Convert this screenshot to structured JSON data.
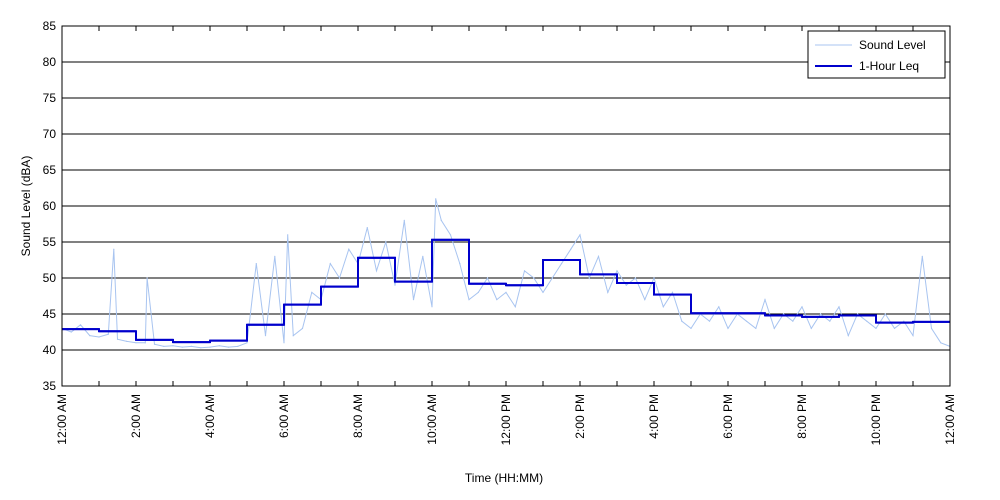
{
  "chart_data": {
    "type": "line",
    "xlabel": "Time (HH:MM)",
    "ylabel": "Sound Level (dBA)",
    "ylim": [
      35,
      85
    ],
    "xlim_hours": [
      0,
      24
    ],
    "yticks": [
      35,
      40,
      45,
      50,
      55,
      60,
      65,
      70,
      75,
      80,
      85
    ],
    "xtick_labels": [
      "12:00 AM",
      "2:00 AM",
      "4:00 AM",
      "6:00 AM",
      "8:00 AM",
      "10:00 AM",
      "12:00 PM",
      "2:00 PM",
      "4:00 PM",
      "6:00 PM",
      "8:00 PM",
      "10:00 PM",
      "12:00 AM"
    ],
    "grid": "horizontal",
    "legend_position": "top-right",
    "series": [
      {
        "name": "Sound Level",
        "color": "#a8c4f0",
        "x_hours": [
          0,
          0.25,
          0.5,
          0.75,
          1,
          1.25,
          1.4,
          1.5,
          1.75,
          2,
          2.25,
          2.3,
          2.5,
          2.75,
          3,
          3.25,
          3.5,
          3.75,
          4,
          4.25,
          4.5,
          4.75,
          5,
          5.25,
          5.5,
          5.75,
          6,
          6.1,
          6.25,
          6.5,
          6.75,
          7,
          7.25,
          7.5,
          7.75,
          8,
          8.25,
          8.5,
          8.75,
          9,
          9.25,
          9.5,
          9.75,
          10,
          10.1,
          10.25,
          10.5,
          10.75,
          11,
          11.25,
          11.5,
          11.75,
          12,
          12.25,
          12.5,
          12.75,
          13,
          13.25,
          13.5,
          13.75,
          14,
          14.25,
          14.5,
          14.75,
          15,
          15.25,
          15.5,
          15.75,
          16,
          16.25,
          16.5,
          16.75,
          17,
          17.25,
          17.5,
          17.75,
          18,
          18.25,
          18.5,
          18.75,
          19,
          19.25,
          19.5,
          19.75,
          20,
          20.25,
          20.5,
          20.75,
          21,
          21.25,
          21.5,
          21.75,
          22,
          22.25,
          22.5,
          22.75,
          23,
          23.25,
          23.5,
          23.75,
          24
        ],
        "values": [
          43,
          42.5,
          43.5,
          42,
          41.8,
          42.2,
          54,
          41.5,
          41.2,
          41,
          41,
          50,
          40.8,
          40.5,
          40.6,
          40.4,
          40.5,
          40.3,
          40.4,
          40.6,
          40.4,
          40.5,
          41,
          52,
          42,
          53,
          41,
          56,
          42,
          43,
          48,
          47,
          52,
          50,
          54,
          52,
          57,
          51,
          55,
          49,
          58,
          47,
          53,
          46,
          61,
          58,
          56,
          52,
          47,
          48,
          50,
          47,
          48,
          46,
          51,
          50,
          48,
          50,
          52,
          54,
          56,
          50,
          53,
          48,
          51,
          49,
          50,
          47,
          50,
          46,
          48,
          44,
          43,
          45,
          44,
          46,
          43,
          45,
          44,
          43,
          47,
          43,
          45,
          44,
          46,
          43,
          45,
          44,
          46,
          42,
          45,
          44,
          43,
          45,
          43,
          44,
          42,
          53,
          43,
          41,
          40.5
        ]
      },
      {
        "name": "1-Hour Leq",
        "color": "#0000cc",
        "step_start_hours": [
          0,
          1,
          2,
          3,
          4,
          5,
          6,
          7,
          8,
          9,
          10,
          11,
          12,
          13,
          14,
          15,
          16,
          17,
          18,
          19,
          20,
          21,
          22,
          23
        ],
        "values": [
          42.9,
          42.6,
          41.4,
          41.1,
          41.3,
          43.5,
          46.3,
          48.8,
          52.8,
          49.5,
          55.3,
          49.2,
          49,
          52.5,
          50.5,
          49.3,
          47.7,
          45.1,
          45.1,
          44.8,
          44.6,
          44.8,
          43.8,
          43.9
        ]
      }
    ]
  }
}
